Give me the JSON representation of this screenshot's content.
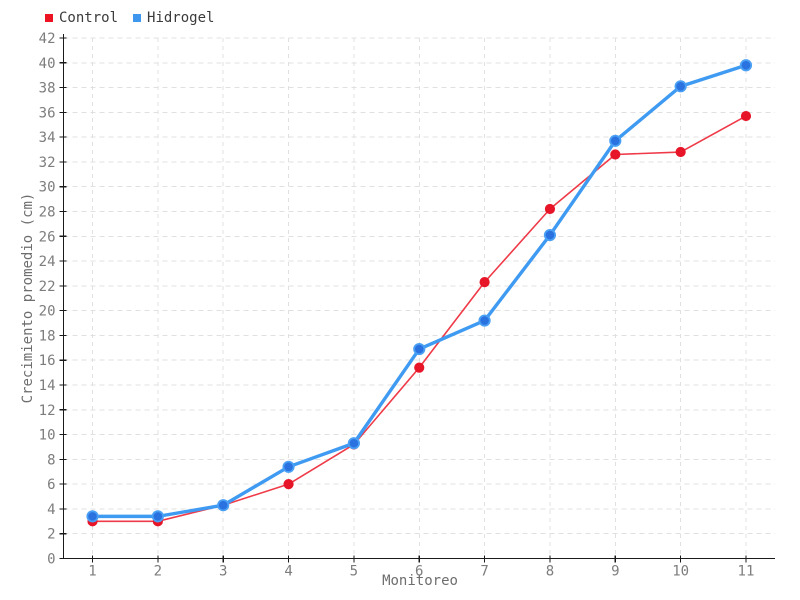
{
  "chart_data": {
    "type": "line",
    "title": "",
    "xlabel": "Monitoreo",
    "ylabel": "Crecimiento promedio (cm)",
    "x": [
      1,
      2,
      3,
      4,
      5,
      6,
      7,
      8,
      9,
      10,
      11
    ],
    "xticks": [
      1,
      2,
      3,
      4,
      5,
      6,
      7,
      8,
      9,
      10,
      11
    ],
    "yticks": [
      0,
      2,
      4,
      6,
      8,
      10,
      12,
      14,
      16,
      18,
      20,
      22,
      24,
      26,
      28,
      30,
      32,
      34,
      36,
      38,
      40,
      42
    ],
    "xlim": [
      0.556,
      11.444
    ],
    "ylim": [
      0,
      42
    ],
    "grid": true,
    "grid_style": "dashed",
    "legend_position": "top-left",
    "series": [
      {
        "name": "Control",
        "values": [
          3.0,
          3.0,
          4.3,
          6.0,
          9.2,
          15.4,
          22.3,
          28.2,
          32.6,
          32.8,
          35.7
        ],
        "line_color": "#ef3a48",
        "marker_color": "#e71528",
        "marker_stroke": "#e71528",
        "legend_color": "#ec1422",
        "line_width": 1.6,
        "marker_radius": 4.2
      },
      {
        "name": "Hidrogel",
        "values": [
          3.4,
          3.4,
          4.3,
          7.4,
          9.3,
          16.9,
          19.2,
          26.1,
          33.7,
          38.1,
          39.8
        ],
        "line_color": "#3f9af2",
        "marker_color": "#2a72e0",
        "marker_stroke": "#4aa0f4",
        "legend_color": "#3e96ef",
        "line_width": 3.4,
        "marker_radius": 5.2
      }
    ],
    "colors": {
      "background": "#ffffff",
      "axis": "#1a1a1a",
      "grid": "#e0e0e0",
      "tick_label": "#7d7d7d",
      "axis_title": "#6e6e6e",
      "legend_text": "#3b3b3b"
    }
  }
}
